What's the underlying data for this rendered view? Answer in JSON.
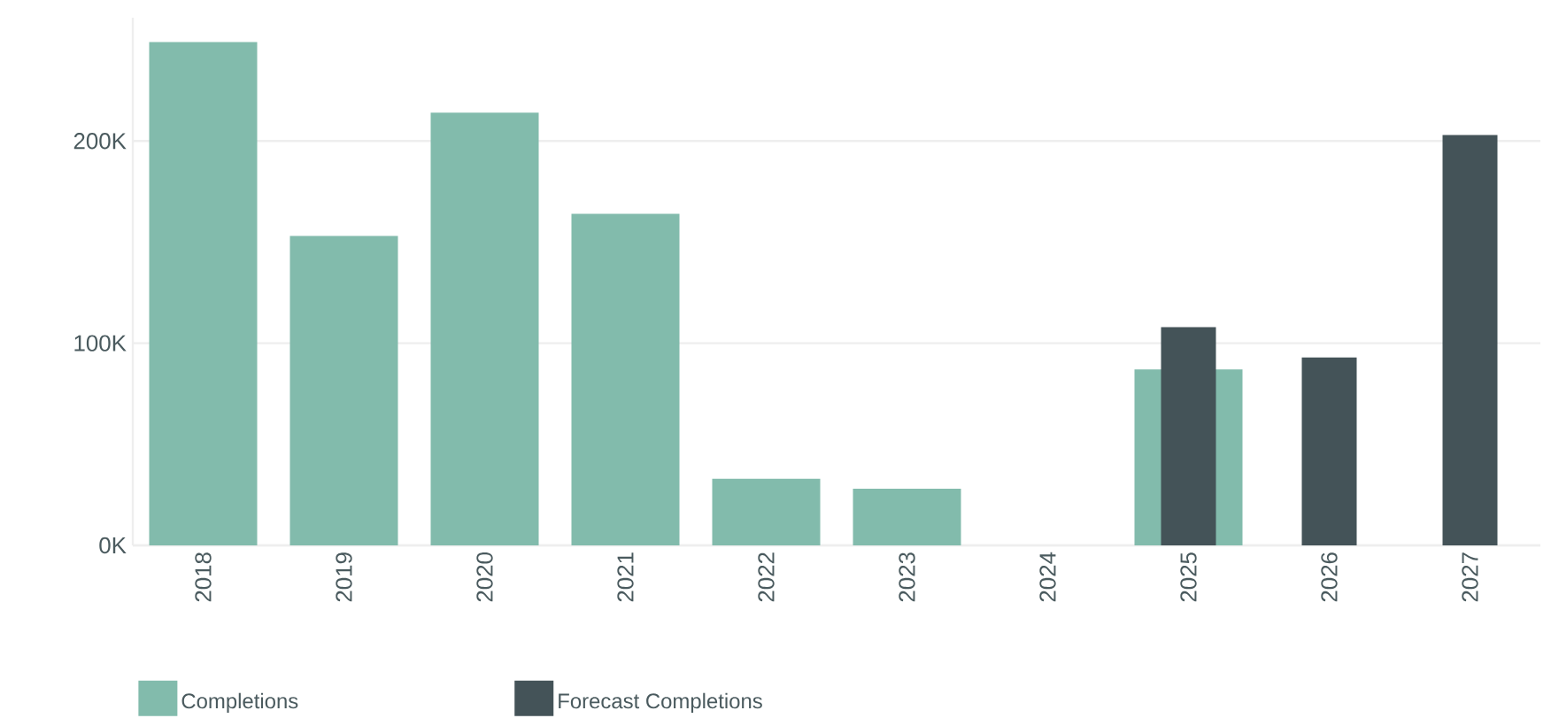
{
  "chart_data": {
    "type": "bar",
    "categories": [
      "2018",
      "2019",
      "2020",
      "2021",
      "2022",
      "2023",
      "2024",
      "2025",
      "2026",
      "2027"
    ],
    "series": [
      {
        "name": "Completions",
        "color": "#82bbac",
        "values": [
          249000,
          153000,
          214000,
          164000,
          33000,
          28000,
          null,
          87000,
          null,
          null
        ]
      },
      {
        "name": "Forecast Completions",
        "color": "#445358",
        "values": [
          null,
          null,
          null,
          null,
          null,
          null,
          null,
          108000,
          93000,
          203000
        ]
      }
    ],
    "ylim": [
      0,
      261000
    ],
    "yticks": [
      {
        "value": 0,
        "label": "0K"
      },
      {
        "value": 100000,
        "label": "100K"
      },
      {
        "value": 200000,
        "label": "200K"
      }
    ],
    "grid": "y",
    "legend": "bottom left"
  }
}
